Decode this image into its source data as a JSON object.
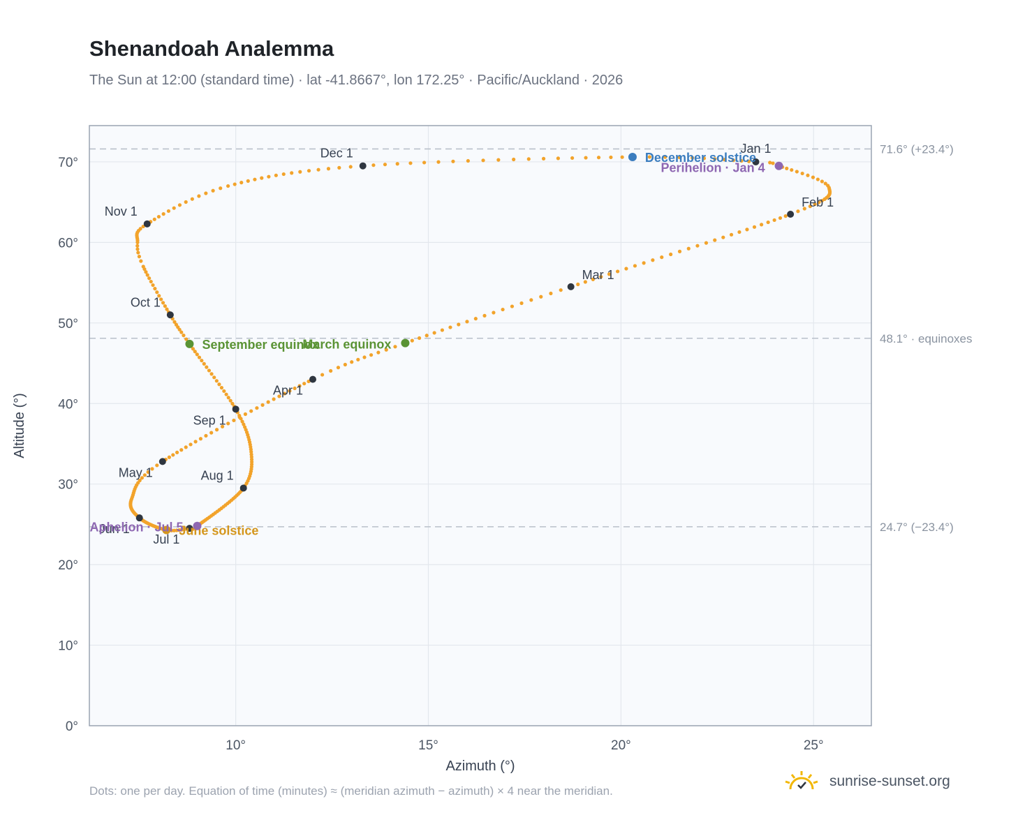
{
  "title": "Shenandoah Analemma",
  "subtitle": "The Sun at 12:00 (standard time) · lat -41.8667°, lon 172.25° · Pacific/Auckland · 2026",
  "footer_note": "Dots: one per day. Equation of time (minutes) ≈ (meridian azimuth − azimuth) × 4 near the meridian.",
  "brand": {
    "name": "sunrise-sunset.org",
    "icon": "sun-logo-icon",
    "color": "#f2b705"
  },
  "colors": {
    "path": "#f2a32b",
    "month_marker": "#2f3640",
    "equinox": "#5a9334",
    "june_solstice": "#d4961c",
    "december_solstice": "#3b7dbf",
    "apsis": "#8e67b2",
    "reference_line": "#b9c0ca",
    "plot_bg": "#f8fafd",
    "plot_border": "#9aa4b2",
    "grid": "#e3e7ed"
  },
  "chart_data": {
    "type": "scatter",
    "xlabel": "Azimuth (°)",
    "ylabel": "Altitude (°)",
    "xlim": [
      6.2,
      26.5
    ],
    "ylim": [
      0,
      74.5
    ],
    "x_ticks": [
      10,
      15,
      20,
      25
    ],
    "x_tick_labels": [
      "10°",
      "15°",
      "20°",
      "25°"
    ],
    "y_ticks": [
      0,
      10,
      20,
      30,
      40,
      50,
      60,
      70
    ],
    "y_tick_labels": [
      "0°",
      "10°",
      "20°",
      "30°",
      "40°",
      "50°",
      "60°",
      "70°"
    ],
    "grid": true,
    "reference_lines": [
      {
        "y": 71.6,
        "label": "71.6° (+23.4°)"
      },
      {
        "y": 48.1,
        "label": "48.1° · equinoxes"
      },
      {
        "y": 24.7,
        "label": "24.7° (−23.4°)"
      }
    ],
    "month_markers": [
      {
        "label": "Jan 1",
        "x": 23.5,
        "y": 70.0,
        "pos": "above"
      },
      {
        "label": "Feb 1",
        "x": 24.4,
        "y": 63.5,
        "pos": "above-right"
      },
      {
        "label": "Mar 1",
        "x": 18.7,
        "y": 54.5,
        "pos": "above-right"
      },
      {
        "label": "Apr 1",
        "x": 12.0,
        "y": 43.0,
        "pos": "below-left"
      },
      {
        "label": "May 1",
        "x": 8.1,
        "y": 32.8,
        "pos": "below-left"
      },
      {
        "label": "Jun 1",
        "x": 7.5,
        "y": 25.8,
        "pos": "below-left"
      },
      {
        "label": "Jul 1",
        "x": 8.8,
        "y": 24.5,
        "pos": "below-left"
      },
      {
        "label": "Aug 1",
        "x": 10.2,
        "y": 29.5,
        "pos": "above-left"
      },
      {
        "label": "Sep 1",
        "x": 10.0,
        "y": 39.3,
        "pos": "below-left"
      },
      {
        "label": "Oct 1",
        "x": 8.3,
        "y": 51.0,
        "pos": "above-left"
      },
      {
        "label": "Nov 1",
        "x": 7.7,
        "y": 62.3,
        "pos": "above-left"
      },
      {
        "label": "Dec 1",
        "x": 13.3,
        "y": 69.5,
        "pos": "above-left"
      }
    ],
    "events": [
      {
        "label": "March equinox",
        "x": 14.4,
        "y": 47.5,
        "color_key": "equinox",
        "pos": "left"
      },
      {
        "label": "June solstice",
        "x": 8.2,
        "y": 24.3,
        "color_key": "june_solstice",
        "pos": "right"
      },
      {
        "label": "September equinox",
        "x": 8.8,
        "y": 47.4,
        "color_key": "equinox",
        "pos": "right"
      },
      {
        "label": "December solstice",
        "x": 20.3,
        "y": 70.6,
        "color_key": "december_solstice",
        "pos": "right"
      },
      {
        "label": "Perihelion · Jan 4",
        "x": 24.1,
        "y": 69.5,
        "color_key": "apsis",
        "pos": "left-below"
      },
      {
        "label": "Aphelion · Jul 5",
        "x": 9.0,
        "y": 24.8,
        "color_key": "apsis",
        "pos": "left"
      }
    ],
    "path_anchor_points": [
      {
        "date": "Dec 1",
        "day": 335,
        "x": 13.3,
        "y": 69.5
      },
      {
        "date": "Dec 21",
        "day": 355,
        "x": 20.3,
        "y": 70.6
      },
      {
        "date": "Jan 1",
        "day": 366,
        "x": 23.5,
        "y": 70.0
      },
      {
        "date": "Jan 4",
        "day": 369,
        "x": 24.1,
        "y": 69.5
      },
      {
        "date": "Jan 16",
        "day": 381,
        "x": 25.4,
        "y": 66.8
      },
      {
        "date": "Feb 1",
        "day": 397,
        "x": 24.4,
        "y": 63.5
      },
      {
        "date": "Mar 1",
        "day": 425,
        "x": 18.7,
        "y": 54.5
      },
      {
        "date": "Mar 20",
        "day": 444,
        "x": 14.4,
        "y": 47.5
      },
      {
        "date": "Apr 1",
        "day": 456,
        "x": 12.0,
        "y": 43.0
      },
      {
        "date": "May 1",
        "day": 486,
        "x": 8.1,
        "y": 32.8
      },
      {
        "date": "May 16",
        "day": 501,
        "x": 7.3,
        "y": 28.2
      },
      {
        "date": "Jun 1",
        "day": 517,
        "x": 7.5,
        "y": 25.8
      },
      {
        "date": "Jun 21",
        "day": 537,
        "x": 8.2,
        "y": 24.3
      },
      {
        "date": "Jul 1",
        "day": 547,
        "x": 8.8,
        "y": 24.5
      },
      {
        "date": "Jul 5",
        "day": 551,
        "x": 9.0,
        "y": 24.8
      },
      {
        "date": "Aug 1",
        "day": 578,
        "x": 10.2,
        "y": 29.5
      },
      {
        "date": "Aug 16",
        "day": 593,
        "x": 10.4,
        "y": 34.0
      },
      {
        "date": "Sep 1",
        "day": 609,
        "x": 10.0,
        "y": 39.3
      },
      {
        "date": "Sep 22",
        "day": 630,
        "x": 8.8,
        "y": 47.4
      },
      {
        "date": "Oct 1",
        "day": 639,
        "x": 8.3,
        "y": 51.0
      },
      {
        "date": "Oct 16",
        "day": 654,
        "x": 7.6,
        "y": 57.0
      },
      {
        "date": "Oct 22",
        "day": 660,
        "x": 7.45,
        "y": 60.0
      },
      {
        "date": "Nov 1",
        "day": 670,
        "x": 7.7,
        "y": 62.3
      },
      {
        "date": "Nov 15",
        "day": 684,
        "x": 9.8,
        "y": 67.0
      },
      {
        "date": "Dec 1",
        "day": 700,
        "x": 13.3,
        "y": 69.5
      }
    ]
  }
}
